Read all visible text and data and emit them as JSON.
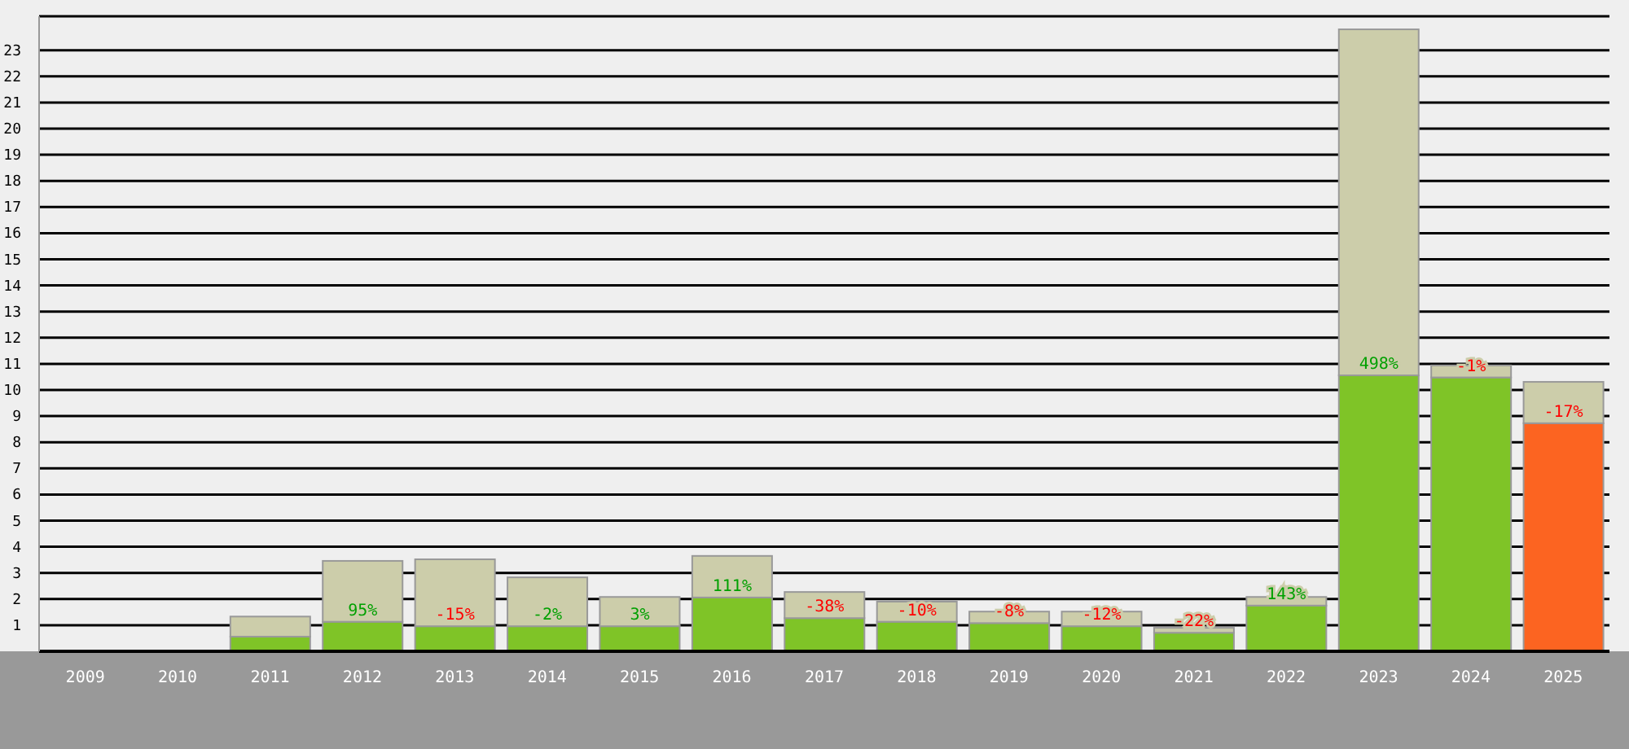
{
  "chart_data": {
    "type": "bar",
    "stacked": true,
    "categories": [
      "2009",
      "2010",
      "2011",
      "2012",
      "2013",
      "2014",
      "2015",
      "2016",
      "2017",
      "2018",
      "2019",
      "2020",
      "2021",
      "2022",
      "2023",
      "2024",
      "2025"
    ],
    "series": [
      {
        "color": "#7fc427",
        "colors": [
          "#7fc427",
          "#7fc427",
          "#7fc427",
          "#7fc427",
          "#7fc427",
          "#7fc427",
          "#7fc427",
          "#7fc427",
          "#7fc427",
          "#7fc427",
          "#7fc427",
          "#7fc427",
          "#7fc427",
          "#7fc427",
          "#7fc427",
          "#7fc427",
          "#fc6421"
        ],
        "values": [
          0,
          0,
          0.56,
          1.13,
          0.96,
          0.96,
          0.96,
          2.06,
          1.27,
          1.13,
          1.08,
          0.96,
          0.71,
          1.75,
          10.56,
          10.48,
          8.73
        ]
      },
      {
        "color": "#cccdaa",
        "values": [
          0,
          0,
          0.77,
          2.33,
          2.56,
          1.87,
          1.12,
          1.59,
          1.0,
          0.77,
          0.44,
          0.56,
          0.19,
          0.33,
          13.24,
          0.46,
          1.58
        ]
      }
    ],
    "ylim": [
      0,
      24.3
    ],
    "yticks": [
      1,
      2,
      3,
      4,
      5,
      6,
      7,
      8,
      9,
      10,
      11,
      12,
      13,
      14,
      15,
      16,
      17,
      18,
      19,
      20,
      21,
      22,
      23
    ],
    "grid": "y",
    "legend": false,
    "annotations": [
      {
        "text": "95%",
        "x": "2012",
        "y": 1.13
      },
      {
        "text": "-15%",
        "x": "2013",
        "y": 0.96
      },
      {
        "text": "-2%",
        "x": "2014",
        "y": 0.96
      },
      {
        "text": "3%",
        "x": "2015",
        "y": 0.96
      },
      {
        "text": "111%",
        "x": "2016",
        "y": 2.06
      },
      {
        "text": "-38%",
        "x": "2017",
        "y": 1.27
      },
      {
        "text": "-10%",
        "x": "2018",
        "y": 1.13
      },
      {
        "text": "-8%",
        "x": "2019",
        "y": 1.08
      },
      {
        "text": "-12%",
        "x": "2020",
        "y": 0.96
      },
      {
        "text": "-22%",
        "x": "2021",
        "y": 0.71
      },
      {
        "text": "143%",
        "x": "2022",
        "y": 1.75
      },
      {
        "text": "498%",
        "x": "2023",
        "y": 10.56
      },
      {
        "text": "-1%",
        "x": "2024",
        "y": 10.48
      },
      {
        "text": "-17%",
        "x": "2025",
        "y": 8.73
      }
    ]
  }
}
